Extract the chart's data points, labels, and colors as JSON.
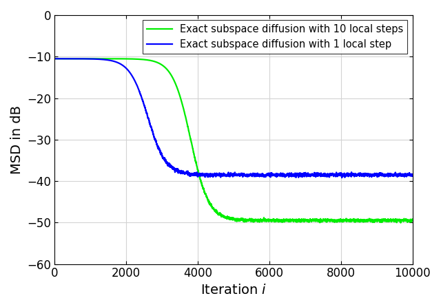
{
  "title": "",
  "xlabel": "Iteration $i$",
  "ylabel": "MSD in dB",
  "xlim": [
    0,
    10000
  ],
  "ylim": [
    -60,
    0
  ],
  "xticks": [
    0,
    2000,
    4000,
    6000,
    8000,
    10000
  ],
  "yticks": [
    0,
    -10,
    -20,
    -30,
    -40,
    -50,
    -60
  ],
  "line1_color": "#0000ff",
  "line2_color": "#00ee00",
  "line1_label": "Exact subspace diffusion with 1 local step",
  "line2_label": "Exact subspace diffusion with 10 local steps",
  "line_width": 1.6,
  "n_points": 10001,
  "seed": 42,
  "line1_steady": -38.5,
  "line2_steady": -49.5,
  "start_val": -10.5,
  "line1_knee": 2600,
  "line2_knee": 3800,
  "line1_noise_amp": 0.55,
  "line2_noise_amp": 0.45,
  "xlabel_fontsize": 14,
  "ylabel_fontsize": 14,
  "tick_fontsize": 12,
  "legend_fontsize": 10.5,
  "background_color": "#ffffff",
  "grid_color": "#d3d3d3"
}
